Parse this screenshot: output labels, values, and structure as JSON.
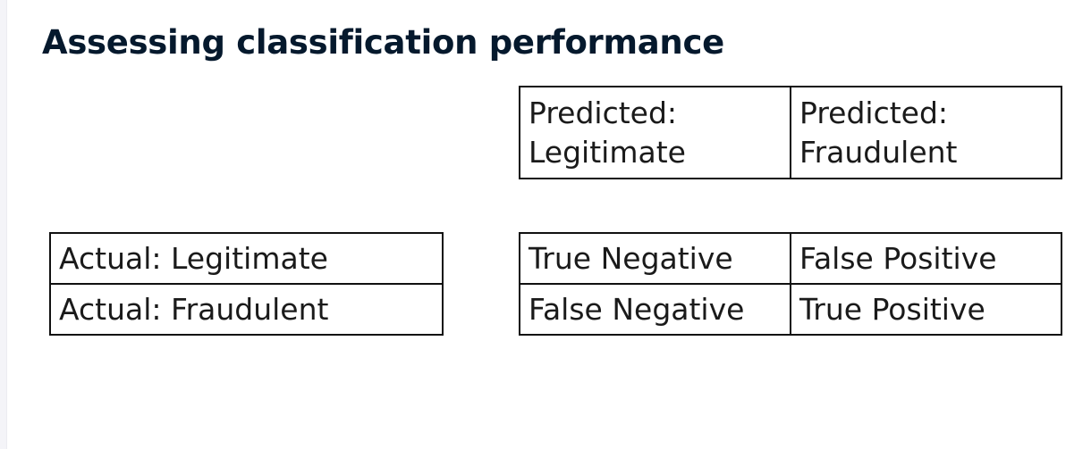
{
  "title": "Assessing classification performance",
  "predicted_header": [
    {
      "line1": "Predicted:",
      "line2": "Legitimate"
    },
    {
      "line1": "Predicted:",
      "line2": "Fraudulent"
    }
  ],
  "actual_rows": [
    "Actual: Legitimate",
    "Actual: Fraudulent"
  ],
  "matrix": [
    [
      "True Negative",
      "False Positive"
    ],
    [
      "False Negative",
      "True Positive"
    ]
  ]
}
